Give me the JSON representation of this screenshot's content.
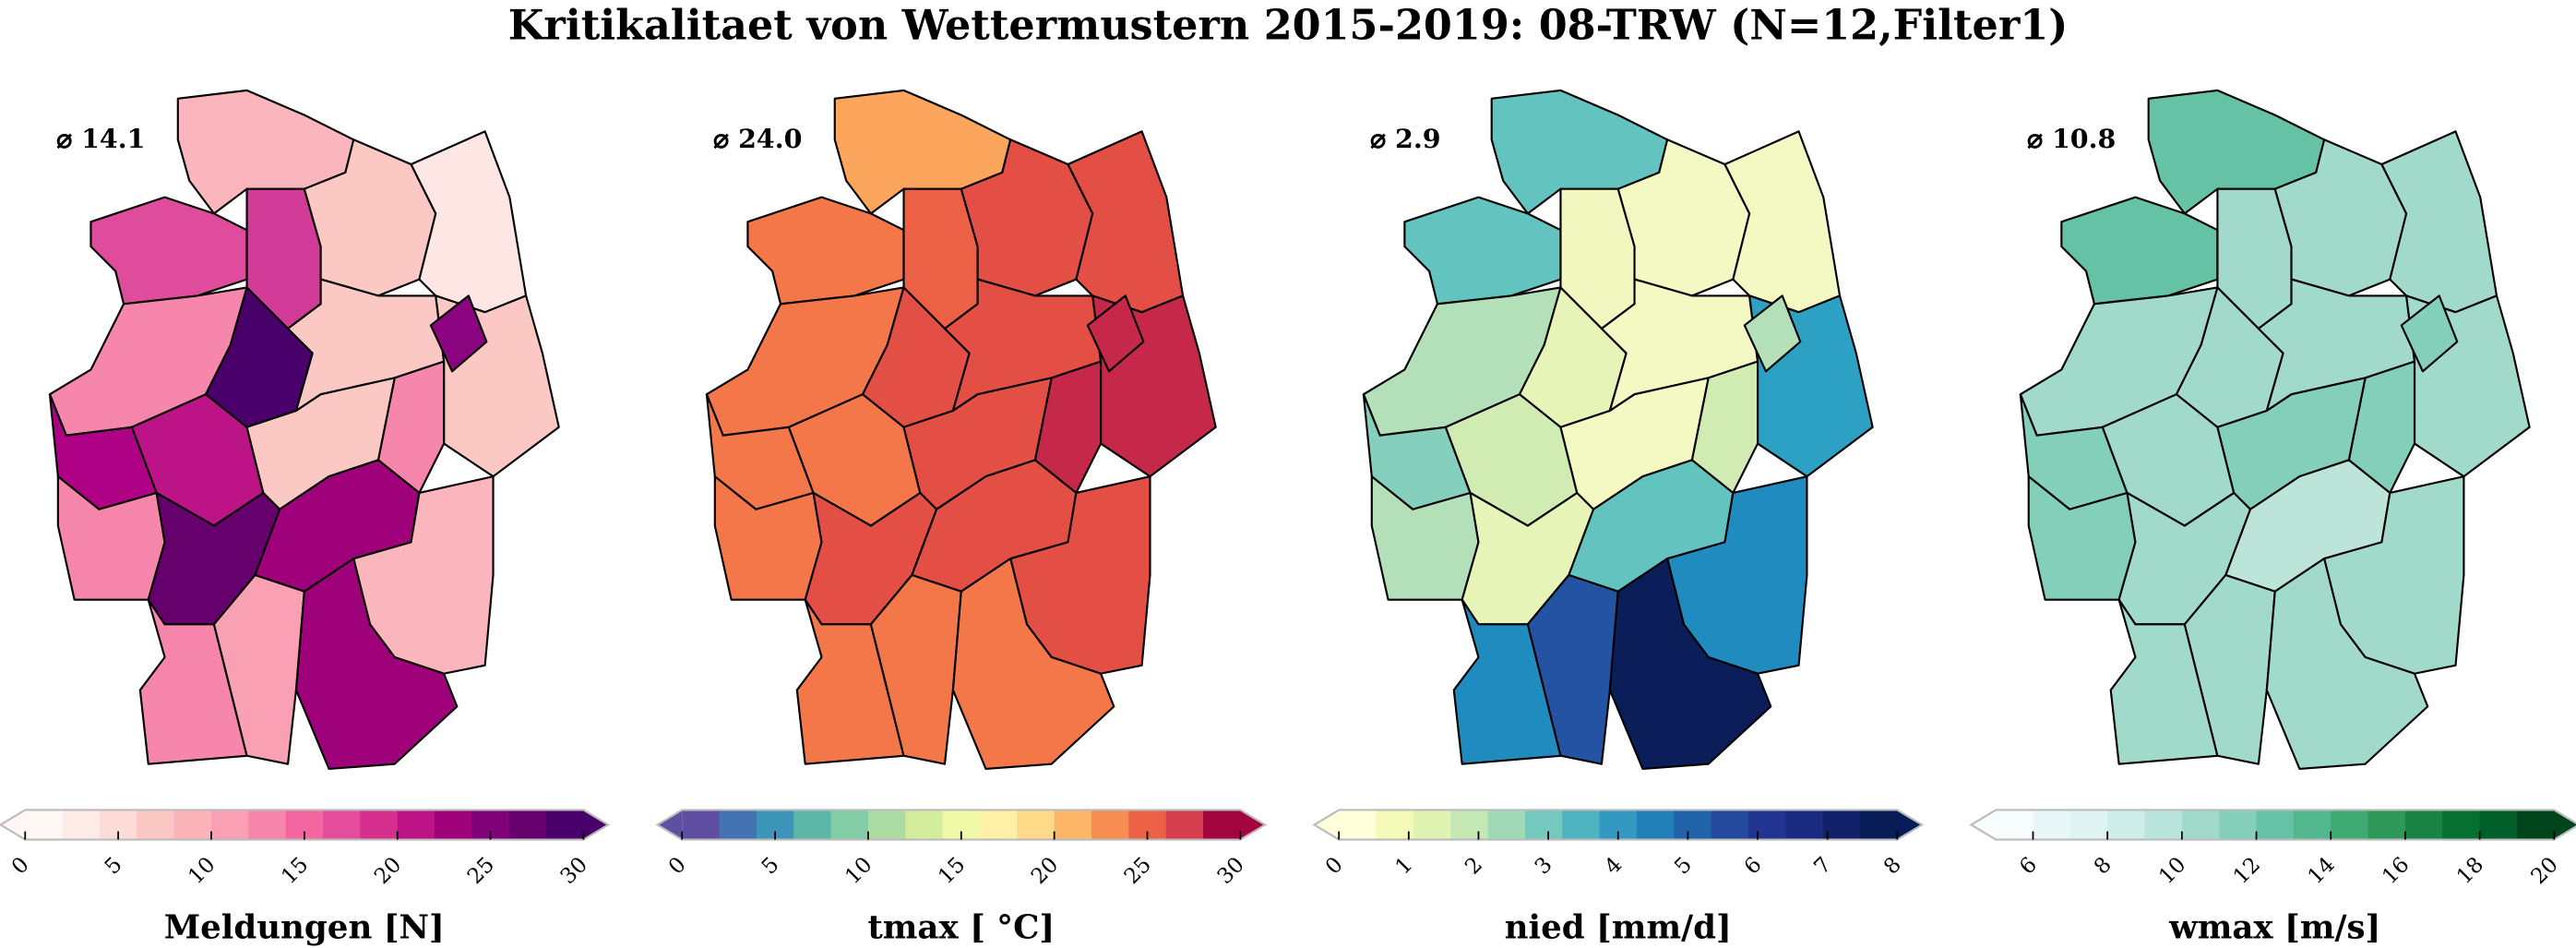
{
  "title": "Kritikalitaet von Wettermustern 2015-2019: 08-TRW (N=12,Filter1)",
  "chart_data": [
    {
      "type": "choropleth",
      "variable": "Meldungen",
      "mean_label": "⌀ 14.1",
      "colorbar": {
        "label": "Meldungen [N]",
        "range": [
          0,
          30
        ],
        "ticks": [
          0,
          5,
          10,
          15,
          20,
          25,
          30
        ],
        "tick_labels": [
          "0",
          "5",
          "10",
          "15",
          "20",
          "25",
          "30"
        ],
        "extend": "both",
        "colors": [
          "#fff7f3",
          "#feebe7",
          "#fddcd8",
          "#fcc8c3",
          "#fbb4b9",
          "#f9a0b4",
          "#f786ad",
          "#f366a0",
          "#e64c9c",
          "#d6308f",
          "#bc1386",
          "#9e017a",
          "#810178",
          "#66006d",
          "#4a006a"
        ]
      },
      "region_colors": [
        "#fbb5bc",
        "#e04c9c",
        "#d13a97",
        "#fcc8c3",
        "#fde6e4",
        "#f786ad",
        "#4a006a",
        "#fcc8c3",
        "#fcc8c3",
        "#8b0580",
        "#f786ad",
        "#ae0186",
        "#bc1386",
        "#fcc8c3",
        "#f786ad",
        "#66006d",
        "#9e017a",
        "#fbb5bc",
        "#f786ad",
        "#f9a0b4",
        "#9e017a"
      ]
    },
    {
      "type": "choropleth",
      "variable": "tmax",
      "mean_label": "⌀ 24.0",
      "colorbar": {
        "label": "tmax [ °C]",
        "range": [
          0,
          30
        ],
        "ticks": [
          0,
          5,
          10,
          15,
          20,
          25,
          30
        ],
        "tick_labels": [
          "0",
          "5",
          "10",
          "15",
          "20",
          "25",
          "30"
        ],
        "extend": "both",
        "colors": [
          "#5e4fa2",
          "#4272b2",
          "#3d95b8",
          "#5db7a9",
          "#82cda5",
          "#acdca3",
          "#d3ed9c",
          "#f0f9a7",
          "#fef1a7",
          "#fed987",
          "#fdb567",
          "#f88d52",
          "#ec6145",
          "#d53e4f",
          "#a3053f"
        ]
      },
      "region_colors": [
        "#fca55d",
        "#f4774a",
        "#ec6145",
        "#e34f45",
        "#e34f45",
        "#f4774a",
        "#e34f45",
        "#e34f45",
        "#c6284a",
        "#c6284a",
        "#c6284a",
        "#f4774a",
        "#f4774a",
        "#e34f45",
        "#f4774a",
        "#e34f45",
        "#e34f45",
        "#e34f45",
        "#f4774a",
        "#f4774a",
        "#f4774a"
      ]
    },
    {
      "type": "choropleth",
      "variable": "nied",
      "mean_label": "⌀ 2.9",
      "colorbar": {
        "label": "nied [mm/d]",
        "range": [
          0,
          8
        ],
        "ticks": [
          0,
          1,
          2,
          3,
          4,
          5,
          6,
          7,
          8
        ],
        "tick_labels": [
          "0",
          "1",
          "2",
          "3",
          "4",
          "5",
          "6",
          "7",
          "8"
        ],
        "extend": "both",
        "colors": [
          "#ffffd9",
          "#f3fab7",
          "#e0f3b2",
          "#c5e8b4",
          "#a0d9b8",
          "#74c8bd",
          "#4fb4c2",
          "#3499c1",
          "#2280b8",
          "#2163a9",
          "#23499c",
          "#203490",
          "#1a2a80",
          "#13216b",
          "#081d58"
        ]
      },
      "region_colors": [
        "#63c3bf",
        "#63c3bf",
        "#f2f7c0",
        "#f4f9c4",
        "#f4f9c4",
        "#b3e0b8",
        "#e6f4b8",
        "#f4f9c4",
        "#2da1c4",
        "#b3e0b8",
        "#d1ecb3",
        "#84d0bc",
        "#d1ecb3",
        "#f4f9c4",
        "#b3e0b8",
        "#e6f4b8",
        "#63c3bf",
        "#1f8bbf",
        "#1f8bbf",
        "#2553a4",
        "#0b1e5a"
      ]
    },
    {
      "type": "choropleth",
      "variable": "wmax",
      "mean_label": "⌀ 10.8",
      "colorbar": {
        "label": "wmax [m/s]",
        "range": [
          5,
          20
        ],
        "ticks": [
          6,
          8,
          10,
          12,
          14,
          16,
          18,
          20
        ],
        "tick_labels": [
          "6",
          "8",
          "10",
          "12",
          "14",
          "16",
          "18",
          "20"
        ],
        "extend": "both",
        "colors": [
          "#f7fcfd",
          "#e9f7f8",
          "#dff3f3",
          "#cdeee9",
          "#b9e5dc",
          "#a1dacb",
          "#84cfb9",
          "#66c2a4",
          "#52b68e",
          "#40aa73",
          "#2e975a",
          "#1a8446",
          "#057030",
          "#005f28",
          "#00441b"
        ]
      },
      "region_colors": [
        "#66c2a4",
        "#66c2a4",
        "#a1dacb",
        "#a1dacb",
        "#a1dacb",
        "#a1dacb",
        "#a1dacb",
        "#a1dacb",
        "#a1dacb",
        "#84cfb9",
        "#84cfb9",
        "#84cfb9",
        "#a1dacb",
        "#84cfb9",
        "#84cfb9",
        "#a1dacb",
        "#bce4d8",
        "#a1dacb",
        "#a1dacb",
        "#a1dacb",
        "#a1dacb"
      ]
    }
  ]
}
